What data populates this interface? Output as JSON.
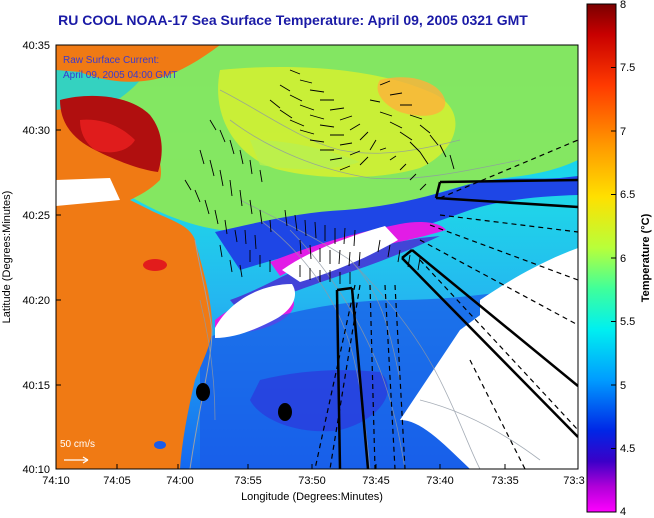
{
  "title": "RU COOL  NOAA-17  Sea Surface Temperature:  April 09, 2005 0321 GMT",
  "current_legend": {
    "line1": "Raw Surface Current:",
    "line2": "April 09, 2005 04:00 GMT",
    "scale_label": "50 cm/s"
  },
  "axes": {
    "xlabel": "Longitude (Degrees:Minutes)",
    "ylabel": "Latitude (Degrees:Minutes)",
    "xticks": [
      "74:10",
      "74:05",
      "74:00",
      "73:55",
      "73:50",
      "73:45",
      "73:40",
      "73:35",
      "73:3"
    ],
    "yticks": [
      "40:35",
      "40:30",
      "40:25",
      "40:20",
      "40:15",
      "40:10"
    ]
  },
  "colorbar": {
    "label": "Temperature (°C)",
    "ticks": [
      "8",
      "7.5",
      "7",
      "6.5",
      "6",
      "5.5",
      "5",
      "4.5",
      "4"
    ],
    "min": 4,
    "max": 8
  },
  "colors": {
    "land": "#f07a14",
    "title": "#1a1aa6",
    "legend_text": "#3a3ad0",
    "no_data": "#ffffff"
  }
}
